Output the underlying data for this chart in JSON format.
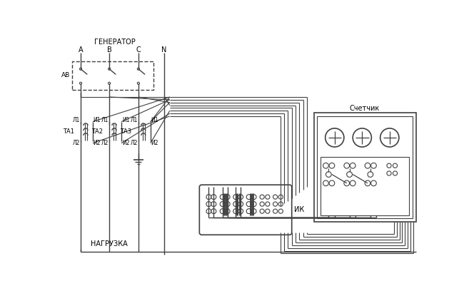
{
  "bg_color": "#ffffff",
  "line_color": "#404040",
  "fig_width": 6.57,
  "fig_height": 4.08,
  "dpi": 100,
  "labels": {
    "generator": "ГЕНЕРАТОР",
    "load": "НАГРУЗКА",
    "meter": "Счетчик",
    "ik": "ИК",
    "A": "А",
    "B": "В",
    "C": "С",
    "N": "N",
    "AB": "АВ",
    "TA1": "ТА1",
    "TA2": "ТА2",
    "TA3": "ТА3"
  }
}
